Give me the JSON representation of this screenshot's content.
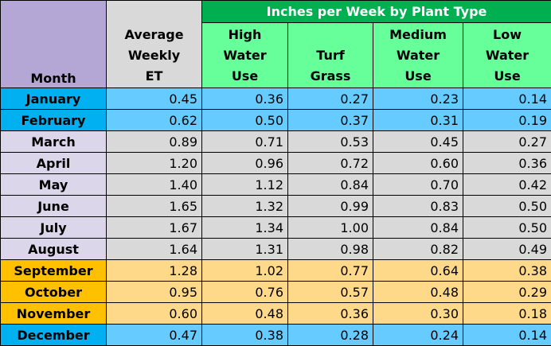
{
  "header": {
    "month": "Month",
    "et_lines": [
      "Average",
      "Weekly",
      "ET"
    ],
    "group": "Inches per Week by Plant Type",
    "columns": [
      [
        "High",
        "Water",
        "Use"
      ],
      [
        "Turf",
        "Grass"
      ],
      [
        "Medium",
        "Water",
        "Use"
      ],
      [
        "Low",
        "Water",
        "Use"
      ]
    ]
  },
  "colors": {
    "month_header": "#b4a7d6",
    "group_header": "#00b050",
    "sub_header": "#66ff99",
    "winter_month": "#00b0f0",
    "winter_value": "#66ccff",
    "summer_month": "#dcd6ea",
    "summer_value": "#d9d9d9",
    "fall_month": "#ffc000",
    "fall_value": "#ffd98a"
  },
  "rows": [
    {
      "month": "January",
      "season": "winter",
      "values": [
        "0.45",
        "0.36",
        "0.27",
        "0.23",
        "0.14"
      ]
    },
    {
      "month": "February",
      "season": "winter",
      "values": [
        "0.62",
        "0.50",
        "0.37",
        "0.31",
        "0.19"
      ]
    },
    {
      "month": "March",
      "season": "summer",
      "values": [
        "0.89",
        "0.71",
        "0.53",
        "0.45",
        "0.27"
      ]
    },
    {
      "month": "April",
      "season": "summer",
      "values": [
        "1.20",
        "0.96",
        "0.72",
        "0.60",
        "0.36"
      ]
    },
    {
      "month": "May",
      "season": "summer",
      "values": [
        "1.40",
        "1.12",
        "0.84",
        "0.70",
        "0.42"
      ]
    },
    {
      "month": "June",
      "season": "summer",
      "values": [
        "1.65",
        "1.32",
        "0.99",
        "0.83",
        "0.50"
      ]
    },
    {
      "month": "July",
      "season": "summer",
      "values": [
        "1.67",
        "1.34",
        "1.00",
        "0.84",
        "0.50"
      ]
    },
    {
      "month": "August",
      "season": "summer",
      "values": [
        "1.64",
        "1.31",
        "0.98",
        "0.82",
        "0.49"
      ]
    },
    {
      "month": "September",
      "season": "fall",
      "values": [
        "1.28",
        "1.02",
        "0.77",
        "0.64",
        "0.38"
      ]
    },
    {
      "month": "October",
      "season": "fall",
      "values": [
        "0.95",
        "0.76",
        "0.57",
        "0.48",
        "0.29"
      ]
    },
    {
      "month": "November",
      "season": "fall",
      "values": [
        "0.60",
        "0.48",
        "0.36",
        "0.30",
        "0.18"
      ]
    },
    {
      "month": "December",
      "season": "winter",
      "values": [
        "0.47",
        "0.38",
        "0.28",
        "0.24",
        "0.14"
      ]
    }
  ]
}
